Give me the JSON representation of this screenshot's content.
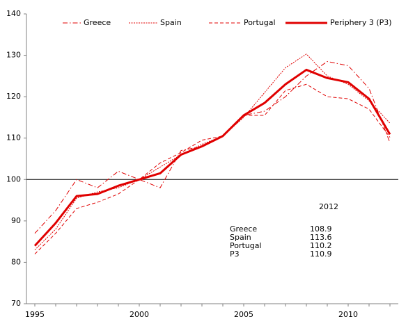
{
  "chart_data": {
    "type": "line",
    "x": [
      1995,
      1996,
      1997,
      1998,
      1999,
      2000,
      2001,
      2002,
      2003,
      2004,
      2005,
      2006,
      2007,
      2008,
      2009,
      2010,
      2011,
      2012
    ],
    "xlim": [
      1994.6,
      2012.4
    ],
    "xticks": [
      1995,
      2000,
      2005,
      2010
    ],
    "ylim": [
      70,
      140
    ],
    "yticks": [
      70,
      80,
      90,
      100,
      110,
      120,
      130,
      140
    ],
    "reference_line": 100,
    "series": [
      {
        "name": "Greece",
        "color": "#e00000",
        "dash": "7 3 1.5 3",
        "width": 1,
        "values": [
          87,
          92.5,
          100,
          98,
          102,
          100,
          98,
          107,
          108,
          110.5,
          115.5,
          116.5,
          120,
          125,
          128.5,
          127.5,
          122,
          108.9
        ]
      },
      {
        "name": "Spain",
        "color": "#e00000",
        "dash": "2 1.5",
        "width": 1,
        "values": [
          83,
          88,
          95.5,
          97,
          98,
          100,
          103,
          106,
          108.5,
          110.5,
          115,
          121,
          127,
          130.3,
          125,
          123,
          119,
          113.6
        ]
      },
      {
        "name": "Portugal",
        "color": "#e00000",
        "dash": "5 3",
        "width": 1,
        "values": [
          82,
          87,
          93,
          94.5,
          96.5,
          100,
          104,
          106.5,
          109.5,
          110.5,
          115.5,
          115.5,
          121.5,
          123,
          120,
          119.5,
          117,
          110.2
        ]
      },
      {
        "name": "Periphery 3 (P3)",
        "color": "#e00000",
        "dash": "none",
        "width": 3,
        "values": [
          84,
          89.5,
          96,
          96.5,
          98.5,
          100,
          101.5,
          106,
          108,
          110.5,
          115.5,
          118.5,
          123,
          126.5,
          124.5,
          123.5,
          119.5,
          110.9
        ]
      }
    ],
    "annotation": {
      "title": "2012",
      "names": [
        "Greece",
        "Spain",
        "Portugal",
        "P3"
      ]
    }
  }
}
